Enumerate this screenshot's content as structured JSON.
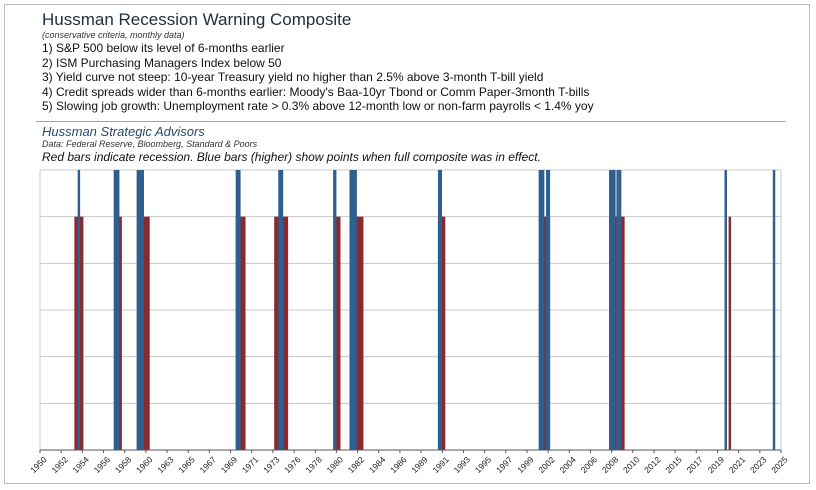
{
  "header": {
    "title": "Hussman Recession Warning Composite",
    "subtitle": "(conservative criteria, monthly data)",
    "criteria": [
      "1) S&P 500 below its level of 6-months earlier",
      "2) ISM Purchasing Managers Index below 50",
      "3) Yield curve not steep: 10-year Treasury yield no higher than 2.5% above 3-month T-bill yield",
      "4) Credit spreads wider than 6-months earlier: Moody's Baa-10yr Tbond or Comm Paper-3month T-bills",
      "5) Slowing job growth: Unemployment rate > 0.3% above 12-month low or non-farm payrolls < 1.4% yoy"
    ]
  },
  "source": {
    "org": "Hussman Strategic Advisors",
    "data": "Data: Federal Reserve, Bloomberg, Standard & Poors",
    "note": "Red bars indicate recession. Blue bars (higher) show points when full composite was in effect."
  },
  "colors": {
    "recession": "#8b2a2e",
    "warning": "#2e5f8f",
    "grid": "#c8c8c8",
    "axis": "#555555"
  },
  "chart_data": {
    "type": "bar",
    "x_range": [
      "1950-01",
      "2025-06"
    ],
    "x_tick_labels": [
      "1950",
      "1952",
      "1954",
      "1956",
      "1958",
      "1960",
      "1963",
      "1965",
      "1967",
      "1969",
      "1971",
      "1973",
      "1976",
      "1978",
      "1980",
      "1982",
      "1984",
      "1986",
      "1989",
      "1991",
      "1993",
      "1995",
      "1997",
      "1999",
      "2002",
      "2004",
      "2006",
      "2008",
      "2010",
      "2012",
      "2015",
      "2017",
      "2019",
      "2021",
      "2023",
      "2025"
    ],
    "ylim": [
      0,
      1.2
    ],
    "grid": true,
    "series": [
      {
        "role": "recession",
        "value": 1.0,
        "periods": [
          [
            "1953-07",
            "1954-05"
          ],
          [
            "1957-08",
            "1958-04"
          ],
          [
            "1960-04",
            "1961-02"
          ],
          [
            "1969-12",
            "1970-11"
          ],
          [
            "1973-11",
            "1975-03"
          ],
          [
            "1980-01",
            "1980-07"
          ],
          [
            "1981-07",
            "1982-11"
          ],
          [
            "1990-07",
            "1991-03"
          ],
          [
            "2001-03",
            "2001-11"
          ],
          [
            "2007-12",
            "2009-06"
          ],
          [
            "2020-02",
            "2020-04"
          ]
        ]
      },
      {
        "role": "warning",
        "value": 1.2,
        "periods": [
          [
            "1953-11",
            "1954-01"
          ],
          [
            "1957-07",
            "1958-01"
          ],
          [
            "1959-11",
            "1960-07"
          ],
          [
            "1969-12",
            "1970-05"
          ],
          [
            "1974-04",
            "1974-09"
          ],
          [
            "1979-11",
            "1980-02"
          ],
          [
            "1981-07",
            "1982-03"
          ],
          [
            "1990-07",
            "1990-11"
          ],
          [
            "2000-10",
            "2001-04"
          ],
          [
            "2001-07",
            "2001-11"
          ],
          [
            "2007-12",
            "2008-07"
          ],
          [
            "2008-09",
            "2008-11"
          ],
          [
            "2008-12",
            "2009-02"
          ],
          [
            "2019-09",
            "2019-11"
          ],
          [
            "2024-08",
            "2024-10"
          ]
        ]
      }
    ]
  }
}
